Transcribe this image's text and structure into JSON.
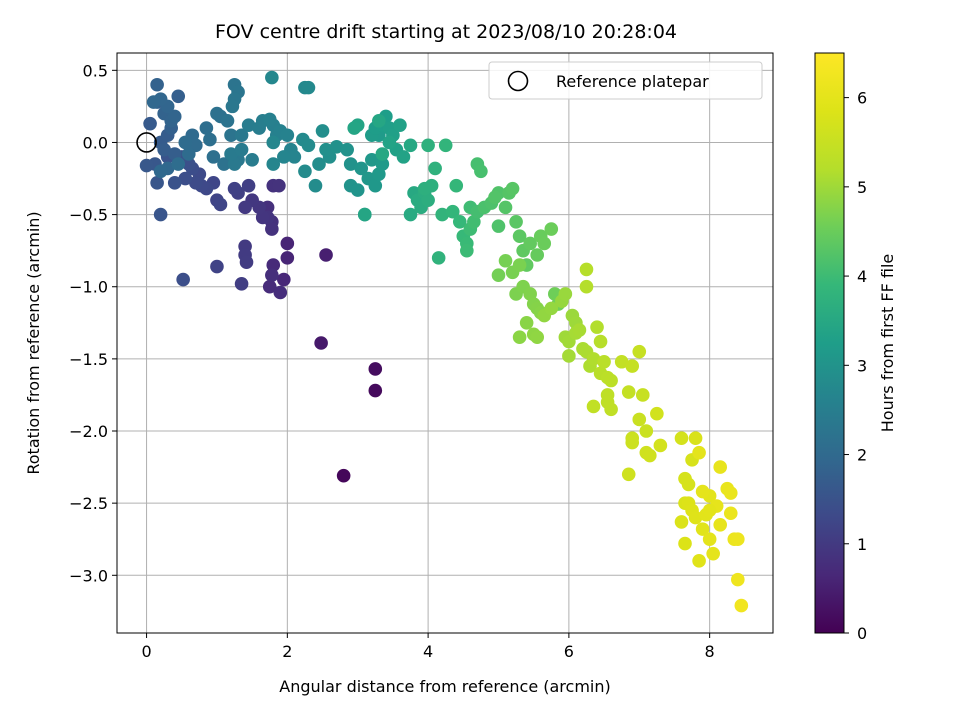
{
  "chart_data": {
    "type": "scatter",
    "title": "FOV centre drift starting at 2023/08/10 20:28:04",
    "xlabel": "Angular distance from reference (arcmin)",
    "ylabel": "Rotation from reference (arcmin)",
    "xlim": [
      -0.42,
      8.9
    ],
    "ylim": [
      -3.4,
      0.62
    ],
    "xticks": [
      0,
      2,
      4,
      6,
      8
    ],
    "xtick_labels": [
      "0",
      "2",
      "4",
      "6",
      "8"
    ],
    "yticks": [
      0.5,
      0.0,
      -0.5,
      -1.0,
      -1.5,
      -2.0,
      -2.5,
      -3.0
    ],
    "ytick_labels": [
      "0.5",
      "0.0",
      "−0.5",
      "−1.0",
      "−1.5",
      "−2.0",
      "−2.5",
      "−3.0"
    ],
    "grid": true,
    "legend": {
      "position": "upper right",
      "entries": [
        "Reference platepar"
      ]
    },
    "reference_point": {
      "x": 0,
      "y": 0
    },
    "colorbar": {
      "label": "Hours from first FF file",
      "range": [
        0,
        6.5
      ],
      "ticks": [
        0,
        1,
        2,
        3,
        4,
        5,
        6
      ],
      "tick_labels": [
        "0",
        "1",
        "2",
        "3",
        "4",
        "5",
        "6"
      ],
      "colormap": "viridis"
    },
    "points": [
      [
        2.8,
        -2.31,
        0.1
      ],
      [
        3.25,
        -1.72,
        0.15
      ],
      [
        3.25,
        -1.57,
        0.2
      ],
      [
        2.48,
        -1.39,
        0.4
      ],
      [
        2.55,
        -0.78,
        0.5
      ],
      [
        2.0,
        -0.7,
        0.6
      ],
      [
        2.0,
        -0.8,
        0.62
      ],
      [
        1.95,
        -0.95,
        0.65
      ],
      [
        1.8,
        -0.85,
        0.7
      ],
      [
        1.75,
        -1.0,
        0.72
      ],
      [
        1.9,
        -1.04,
        0.75
      ],
      [
        1.78,
        -0.92,
        0.78
      ],
      [
        1.72,
        -0.45,
        0.8
      ],
      [
        1.78,
        -0.55,
        0.82
      ],
      [
        1.78,
        -0.6,
        0.84
      ],
      [
        1.8,
        -0.3,
        0.85
      ],
      [
        1.88,
        -0.3,
        0.86
      ],
      [
        1.72,
        -0.52,
        0.88
      ],
      [
        1.65,
        -0.52,
        0.9
      ],
      [
        1.6,
        -0.45,
        0.92
      ],
      [
        1.5,
        -0.4,
        0.95
      ],
      [
        1.4,
        -0.45,
        0.98
      ],
      [
        1.4,
        -0.72,
        1.0
      ],
      [
        1.4,
        -0.78,
        1.02
      ],
      [
        1.42,
        -0.83,
        1.05
      ],
      [
        1.35,
        -0.98,
        1.08
      ],
      [
        1.45,
        -0.3,
        1.1
      ],
      [
        1.3,
        -0.35,
        1.12
      ],
      [
        1.25,
        -0.32,
        1.15
      ],
      [
        1.0,
        -0.86,
        1.18
      ],
      [
        1.0,
        -0.4,
        1.2
      ],
      [
        1.05,
        -0.43,
        1.22
      ],
      [
        0.95,
        -0.28,
        1.25
      ],
      [
        0.85,
        -0.32,
        1.28
      ],
      [
        0.78,
        -0.3,
        1.3
      ],
      [
        0.75,
        -0.22,
        1.32
      ],
      [
        0.7,
        -0.28,
        1.35
      ],
      [
        0.65,
        -0.18,
        1.38
      ],
      [
        0.55,
        -0.25,
        1.4
      ],
      [
        0.52,
        -0.95,
        1.42
      ],
      [
        0.6,
        -0.15,
        1.45
      ],
      [
        0.5,
        -0.1,
        1.48
      ],
      [
        0.4,
        -0.28,
        1.5
      ],
      [
        0.3,
        -0.1,
        1.52
      ],
      [
        0.2,
        -0.5,
        1.55
      ],
      [
        0.15,
        -0.28,
        1.58
      ],
      [
        0.12,
        -0.15,
        1.6
      ],
      [
        0.0,
        -0.16,
        1.62
      ],
      [
        0.05,
        0.13,
        1.65
      ],
      [
        0.2,
        0.0,
        1.68
      ],
      [
        0.3,
        0.05,
        1.7
      ],
      [
        0.25,
        -0.05,
        1.72
      ],
      [
        0.4,
        -0.08,
        1.74
      ],
      [
        0.45,
        0.32,
        1.76
      ],
      [
        0.35,
        0.1,
        1.78
      ],
      [
        0.15,
        0.28,
        1.8
      ],
      [
        0.15,
        0.4,
        1.82
      ],
      [
        0.25,
        0.2,
        1.84
      ],
      [
        0.35,
        0.15,
        1.86
      ],
      [
        0.4,
        0.18,
        1.88
      ],
      [
        0.3,
        0.25,
        1.9
      ],
      [
        0.2,
        0.3,
        1.92
      ],
      [
        0.1,
        0.28,
        1.94
      ],
      [
        0.3,
        -0.18,
        1.96
      ],
      [
        0.2,
        -0.2,
        1.98
      ],
      [
        0.65,
        0.05,
        2.0
      ],
      [
        0.7,
        -0.02,
        2.02
      ],
      [
        0.6,
        -0.08,
        2.04
      ],
      [
        0.55,
        0.0,
        2.06
      ],
      [
        0.45,
        -0.15,
        2.08
      ],
      [
        0.85,
        0.1,
        2.1
      ],
      [
        0.9,
        0.02,
        2.12
      ],
      [
        0.95,
        -0.1,
        2.14
      ],
      [
        1.05,
        0.18,
        2.16
      ],
      [
        1.0,
        0.2,
        2.18
      ],
      [
        1.1,
        -0.15,
        2.2
      ],
      [
        1.15,
        0.15,
        2.22
      ],
      [
        1.2,
        0.05,
        2.24
      ],
      [
        1.25,
        0.4,
        2.26
      ],
      [
        1.3,
        0.35,
        2.28
      ],
      [
        1.25,
        0.3,
        2.3
      ],
      [
        1.22,
        0.25,
        2.32
      ],
      [
        1.35,
        0.05,
        2.34
      ],
      [
        1.3,
        -0.12,
        2.36
      ],
      [
        1.25,
        -0.15,
        2.38
      ],
      [
        1.2,
        -0.08,
        2.4
      ],
      [
        1.35,
        -0.05,
        2.42
      ],
      [
        1.5,
        -0.12,
        2.44
      ],
      [
        1.45,
        0.12,
        2.46
      ],
      [
        1.6,
        0.1,
        2.48
      ],
      [
        1.65,
        0.15,
        2.5
      ],
      [
        1.8,
        0.12,
        2.52
      ],
      [
        1.75,
        0.16,
        2.54
      ],
      [
        1.85,
        0.05,
        2.56
      ],
      [
        1.9,
        0.08,
        2.58
      ],
      [
        2.0,
        0.05,
        2.6
      ],
      [
        2.05,
        -0.05,
        2.62
      ],
      [
        2.1,
        -0.1,
        2.64
      ],
      [
        1.95,
        -0.1,
        2.66
      ],
      [
        1.8,
        -0.15,
        2.68
      ],
      [
        1.8,
        0.0,
        2.7
      ],
      [
        1.78,
        0.45,
        2.72
      ],
      [
        2.25,
        0.38,
        2.74
      ],
      [
        2.3,
        0.38,
        2.76
      ],
      [
        2.22,
        0.02,
        2.78
      ],
      [
        2.3,
        -0.02,
        2.8
      ],
      [
        2.25,
        -0.2,
        2.82
      ],
      [
        2.4,
        -0.3,
        2.84
      ],
      [
        2.45,
        -0.15,
        2.86
      ],
      [
        2.5,
        0.08,
        2.88
      ],
      [
        2.6,
        -0.1,
        2.9
      ],
      [
        2.55,
        -0.05,
        2.92
      ],
      [
        2.7,
        -0.03,
        2.94
      ],
      [
        2.85,
        -0.05,
        2.96
      ],
      [
        2.9,
        -0.15,
        2.98
      ],
      [
        2.9,
        -0.3,
        3.0
      ],
      [
        3.0,
        -0.33,
        3.02
      ],
      [
        3.05,
        -0.18,
        3.04
      ],
      [
        3.1,
        -0.5,
        3.06
      ],
      [
        3.15,
        -0.25,
        3.08
      ],
      [
        3.2,
        -0.12,
        3.1
      ],
      [
        3.25,
        -0.3,
        3.12
      ],
      [
        3.3,
        -0.22,
        3.14
      ],
      [
        3.35,
        -0.15,
        3.16
      ],
      [
        3.3,
        0.05,
        3.18
      ],
      [
        3.2,
        0.05,
        3.2
      ],
      [
        3.25,
        0.1,
        3.22
      ],
      [
        3.35,
        0.12,
        3.24
      ],
      [
        3.4,
        0.18,
        3.26
      ],
      [
        3.45,
        0.1,
        3.28
      ],
      [
        3.5,
        0.05,
        3.3
      ],
      [
        3.55,
        -0.05,
        3.32
      ],
      [
        3.6,
        0.12,
        3.34
      ],
      [
        3.65,
        -0.1,
        3.36
      ],
      [
        3.45,
        0.0,
        3.38
      ],
      [
        3.0,
        0.12,
        3.4
      ],
      [
        2.95,
        0.1,
        3.42
      ],
      [
        3.1,
        -0.5,
        3.44
      ],
      [
        3.3,
        0.15,
        3.46
      ],
      [
        3.35,
        -0.08,
        3.48
      ],
      [
        3.75,
        -0.02,
        3.5
      ],
      [
        3.8,
        -0.35,
        3.52
      ],
      [
        3.75,
        -0.5,
        3.55
      ],
      [
        3.85,
        -0.4,
        3.58
      ],
      [
        3.9,
        -0.45,
        3.6
      ],
      [
        3.95,
        -0.35,
        3.62
      ],
      [
        4.0,
        -0.4,
        3.65
      ],
      [
        4.05,
        -0.3,
        3.68
      ],
      [
        3.95,
        -0.32,
        3.7
      ],
      [
        4.0,
        -0.02,
        3.72
      ],
      [
        4.1,
        -0.18,
        3.75
      ],
      [
        4.15,
        -0.8,
        3.78
      ],
      [
        4.2,
        -0.5,
        3.8
      ],
      [
        4.25,
        -0.02,
        3.82
      ],
      [
        4.35,
        -0.48,
        3.85
      ],
      [
        4.4,
        -0.3,
        3.88
      ],
      [
        4.45,
        -0.55,
        3.9
      ],
      [
        4.5,
        -0.65,
        3.92
      ],
      [
        4.55,
        -0.7,
        3.95
      ],
      [
        4.55,
        -0.75,
        3.98
      ],
      [
        4.6,
        -0.6,
        4.0
      ],
      [
        4.6,
        -0.45,
        4.02
      ],
      [
        4.65,
        -0.55,
        4.05
      ],
      [
        4.7,
        -0.48,
        4.08
      ],
      [
        4.7,
        -0.15,
        4.1
      ],
      [
        4.75,
        -0.2,
        4.12
      ],
      [
        4.8,
        -0.45,
        4.15
      ],
      [
        4.9,
        -0.42,
        4.18
      ],
      [
        5.0,
        -0.58,
        4.2
      ],
      [
        5.0,
        -0.35,
        4.22
      ],
      [
        4.95,
        -0.38,
        4.24
      ],
      [
        5.1,
        -0.45,
        4.26
      ],
      [
        5.15,
        -0.35,
        4.28
      ],
      [
        5.2,
        -0.32,
        4.3
      ],
      [
        5.25,
        -0.55,
        4.32
      ],
      [
        5.3,
        -0.65,
        4.35
      ],
      [
        5.35,
        -0.75,
        4.38
      ],
      [
        5.4,
        -0.85,
        4.4
      ],
      [
        5.45,
        -0.7,
        4.42
      ],
      [
        5.55,
        -0.78,
        4.45
      ],
      [
        5.6,
        -0.65,
        4.48
      ],
      [
        5.65,
        -0.7,
        4.5
      ],
      [
        5.75,
        -0.6,
        4.52
      ],
      [
        5.8,
        -1.05,
        4.55
      ],
      [
        5.85,
        -1.12,
        4.58
      ],
      [
        5.0,
        -0.92,
        4.6
      ],
      [
        5.1,
        -0.82,
        4.62
      ],
      [
        5.2,
        -0.9,
        4.64
      ],
      [
        5.3,
        -0.85,
        4.66
      ],
      [
        5.25,
        -1.05,
        4.68
      ],
      [
        5.35,
        -1.0,
        4.7
      ],
      [
        5.45,
        -1.05,
        4.72
      ],
      [
        5.5,
        -1.12,
        4.74
      ],
      [
        5.55,
        -1.15,
        4.76
      ],
      [
        5.6,
        -1.18,
        4.78
      ],
      [
        5.4,
        -1.25,
        4.8
      ],
      [
        5.3,
        -1.35,
        4.82
      ],
      [
        5.5,
        -1.33,
        4.84
      ],
      [
        5.55,
        -1.35,
        4.86
      ],
      [
        5.65,
        -1.2,
        4.88
      ],
      [
        5.75,
        -1.15,
        4.9
      ],
      [
        5.9,
        -1.1,
        4.92
      ],
      [
        5.95,
        -1.05,
        4.94
      ],
      [
        6.05,
        -1.2,
        4.96
      ],
      [
        6.1,
        -1.25,
        4.98
      ],
      [
        5.95,
        -1.35,
        5.0
      ],
      [
        6.0,
        -1.38,
        5.02
      ],
      [
        6.0,
        -1.48,
        5.04
      ],
      [
        6.1,
        -1.32,
        5.06
      ],
      [
        6.15,
        -1.3,
        5.08
      ],
      [
        6.2,
        -1.43,
        5.1
      ],
      [
        6.25,
        -1.45,
        5.12
      ],
      [
        6.3,
        -1.55,
        5.14
      ],
      [
        6.35,
        -1.5,
        5.16
      ],
      [
        6.4,
        -1.28,
        5.18
      ],
      [
        6.25,
        -1.0,
        5.2
      ],
      [
        6.25,
        -0.88,
        5.22
      ],
      [
        6.45,
        -1.38,
        5.24
      ],
      [
        6.45,
        -1.6,
        5.26
      ],
      [
        6.5,
        -1.52,
        5.28
      ],
      [
        6.55,
        -1.63,
        5.3
      ],
      [
        6.6,
        -1.65,
        5.32
      ],
      [
        6.55,
        -1.75,
        5.34
      ],
      [
        6.55,
        -1.8,
        5.36
      ],
      [
        6.6,
        -1.85,
        5.38
      ],
      [
        6.35,
        -1.83,
        5.4
      ],
      [
        6.75,
        -1.52,
        5.42
      ],
      [
        6.85,
        -1.73,
        5.44
      ],
      [
        6.9,
        -1.55,
        5.46
      ],
      [
        7.0,
        -1.45,
        5.48
      ],
      [
        7.05,
        -1.75,
        5.5
      ],
      [
        7.0,
        -1.92,
        5.52
      ],
      [
        7.1,
        -2.0,
        5.54
      ],
      [
        6.9,
        -2.05,
        5.56
      ],
      [
        6.9,
        -2.08,
        5.58
      ],
      [
        6.85,
        -2.3,
        5.6
      ],
      [
        7.1,
        -2.15,
        5.62
      ],
      [
        7.15,
        -2.17,
        5.64
      ],
      [
        7.25,
        -1.88,
        5.66
      ],
      [
        7.3,
        -2.1,
        5.68
      ],
      [
        7.6,
        -2.05,
        5.7
      ],
      [
        7.65,
        -2.33,
        5.72
      ],
      [
        7.7,
        -2.37,
        5.74
      ],
      [
        7.75,
        -2.2,
        5.76
      ],
      [
        7.8,
        -2.05,
        5.78
      ],
      [
        7.65,
        -2.5,
        5.8
      ],
      [
        7.6,
        -2.63,
        5.82
      ],
      [
        7.65,
        -2.78,
        5.84
      ],
      [
        7.7,
        -2.5,
        5.86
      ],
      [
        7.75,
        -2.55,
        5.88
      ],
      [
        7.8,
        -2.6,
        5.9
      ],
      [
        7.85,
        -2.9,
        5.92
      ],
      [
        7.9,
        -2.68,
        5.94
      ],
      [
        7.95,
        -2.58,
        5.96
      ],
      [
        8.0,
        -2.45,
        5.98
      ],
      [
        8.0,
        -2.75,
        6.0
      ],
      [
        8.05,
        -2.85,
        6.02
      ],
      [
        8.1,
        -2.52,
        6.04
      ],
      [
        8.15,
        -2.65,
        6.06
      ],
      [
        8.15,
        -2.25,
        6.08
      ],
      [
        8.25,
        -2.4,
        6.1
      ],
      [
        8.3,
        -2.43,
        6.12
      ],
      [
        8.3,
        -2.57,
        6.14
      ],
      [
        8.35,
        -2.75,
        6.16
      ],
      [
        8.4,
        -2.75,
        6.18
      ],
      [
        8.4,
        -3.03,
        6.22
      ],
      [
        8.45,
        -3.21,
        6.25
      ],
      [
        7.85,
        -2.15,
        6.0
      ],
      [
        7.9,
        -2.42,
        6.02
      ],
      [
        8.0,
        -2.55,
        5.97
      ]
    ]
  }
}
